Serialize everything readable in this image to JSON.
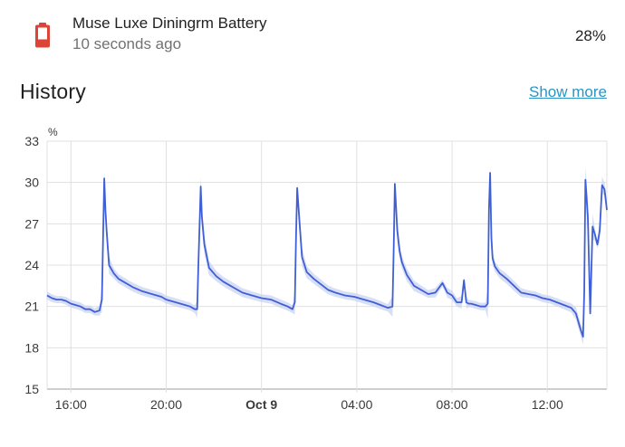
{
  "entity": {
    "name": "Muse Luxe Diningrm Battery",
    "last_changed": "10 seconds ago",
    "state": "28%",
    "icon": "battery-low-icon",
    "icon_color": "#db4437"
  },
  "history": {
    "title": "History",
    "show_more": "Show more"
  },
  "chart_data": {
    "type": "line",
    "unit": "%",
    "ylim": [
      15,
      33
    ],
    "yticks": [
      15,
      18,
      21,
      24,
      27,
      30,
      33
    ],
    "xtick_labels": [
      "16:00",
      "20:00",
      "Oct 9",
      "04:00",
      "08:00",
      "12:00"
    ],
    "xtick_hours": [
      16,
      20,
      24,
      28,
      32,
      36
    ],
    "xlim_hours": [
      15,
      38.5
    ],
    "grid": true,
    "line_color": "#3f5fd6",
    "band_color": "#c9d3f3",
    "series": [
      {
        "x": [
          15.0,
          15.2,
          15.4,
          15.6,
          15.8,
          16.0,
          16.2,
          16.4,
          16.6,
          16.8,
          17.0,
          17.2,
          17.3,
          17.35,
          17.4,
          17.45,
          17.5,
          17.6,
          17.8,
          18.0,
          18.3,
          18.6,
          19.0,
          19.4,
          19.8,
          20.0,
          20.4,
          20.8,
          21.0,
          21.2,
          21.3,
          21.35,
          21.45,
          21.5,
          21.6,
          21.8,
          22.1,
          22.4,
          22.8,
          23.2,
          23.6,
          24.0,
          24.4,
          24.8,
          25.1,
          25.3,
          25.4,
          25.45,
          25.5,
          25.6,
          25.7,
          25.9,
          26.2,
          26.5,
          26.8,
          27.1,
          27.5,
          27.9,
          28.3,
          28.7,
          29.0,
          29.3,
          29.5,
          29.55,
          29.6,
          29.7,
          29.8,
          29.9,
          30.1,
          30.4,
          30.7,
          31.0,
          31.3,
          31.6,
          31.8,
          32.0,
          32.2,
          32.4,
          32.5,
          32.6,
          32.7,
          32.8,
          33.0,
          33.2,
          33.4,
          33.5,
          33.55,
          33.6,
          33.65,
          33.7,
          33.8,
          34.0,
          34.3,
          34.6,
          34.9,
          35.2,
          35.5,
          35.8,
          36.1,
          36.4,
          36.7,
          37.0,
          37.2,
          37.4,
          37.5,
          37.55,
          37.6,
          37.7,
          37.8,
          37.9,
          38.0,
          38.1,
          38.2,
          38.3,
          38.4,
          38.5
        ],
        "y": [
          21.8,
          21.6,
          21.5,
          21.5,
          21.4,
          21.2,
          21.1,
          21.0,
          20.8,
          20.8,
          20.6,
          20.7,
          21.5,
          26.0,
          30.3,
          28.0,
          26.5,
          24.0,
          23.4,
          23.0,
          22.7,
          22.4,
          22.1,
          21.9,
          21.7,
          21.5,
          21.3,
          21.1,
          21.0,
          20.8,
          20.8,
          24.0,
          29.7,
          27.5,
          25.5,
          23.8,
          23.2,
          22.8,
          22.4,
          22.0,
          21.8,
          21.6,
          21.5,
          21.2,
          21.0,
          20.8,
          21.3,
          26.0,
          29.6,
          27.0,
          24.6,
          23.5,
          23.0,
          22.6,
          22.2,
          22.0,
          21.8,
          21.7,
          21.5,
          21.3,
          21.1,
          20.9,
          21.0,
          25.0,
          29.9,
          26.5,
          25.0,
          24.2,
          23.3,
          22.5,
          22.2,
          21.9,
          22.0,
          22.7,
          22.0,
          21.8,
          21.3,
          21.3,
          22.9,
          21.3,
          21.2,
          21.2,
          21.1,
          21.0,
          21.0,
          21.2,
          28.0,
          30.7,
          26.0,
          24.5,
          23.9,
          23.4,
          23.0,
          22.5,
          22.0,
          21.9,
          21.8,
          21.6,
          21.5,
          21.3,
          21.1,
          20.9,
          20.5,
          19.3,
          18.8,
          22.0,
          30.2,
          27.5,
          20.5,
          26.8,
          26.2,
          25.5,
          26.5,
          29.8,
          29.5,
          28.0
        ]
      }
    ]
  }
}
